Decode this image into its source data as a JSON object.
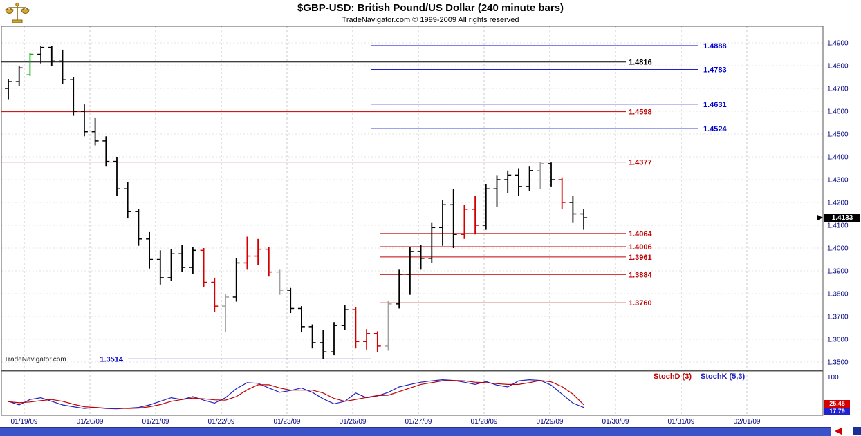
{
  "header": {
    "title": "$GBP-USD:  British Pound/US Dollar  (240 minute bars)",
    "subtitle": "TradeNavigator.com © 1999-2009 All rights reserved"
  },
  "watermark": "TradeNavigator.com",
  "last_price": "1.4133",
  "stoch_panel": {
    "d_label": "StochD (3)",
    "k_label": "StochK (5,3)",
    "scale_top": "100",
    "d_value": "25.45",
    "k_value": "17.79"
  },
  "colors": {
    "axis_text": "#000080",
    "level_red": "#c00000",
    "level_blue": "#0000cc",
    "level_black": "#000000",
    "bar_black": "#000000",
    "bar_red": "#d40000",
    "bar_gray": "#a0a0a0",
    "bar_green": "#00b400",
    "stoch_d": "#c00000",
    "stoch_k": "#2020c0",
    "scrollbar_blue": "#3c52c8",
    "last_price_bg": "#000000"
  },
  "chart_data": [
    {
      "type": "ohlc-bar",
      "title": "$GBP-USD: British Pound/US Dollar (240 minute bars)",
      "ylim": [
        1.35,
        1.49
      ],
      "y_ticks": [
        "1.4900",
        "1.4800",
        "1.4700",
        "1.4600",
        "1.4500",
        "1.4400",
        "1.4300",
        "1.4200",
        "1.4100",
        "1.4000",
        "1.3900",
        "1.3800",
        "1.3700",
        "1.3600",
        "1.3500"
      ],
      "x_ticks": [
        "01/19/09",
        "01/20/09",
        "01/21/09",
        "01/22/09",
        "01/23/09",
        "01/26/09",
        "01/27/09",
        "01/28/09",
        "01/29/09",
        "01/30/09",
        "01/31/09",
        "02/01/09"
      ],
      "bars_per_day": 6,
      "last_price": 1.4133,
      "bars": [
        [
          1.47,
          1.474,
          1.465,
          1.473,
          "black"
        ],
        [
          1.473,
          1.48,
          1.471,
          1.479,
          "black"
        ],
        [
          1.476,
          1.4855,
          1.4755,
          1.485,
          "green"
        ],
        [
          1.485,
          1.4888,
          1.481,
          1.488,
          "black"
        ],
        [
          1.488,
          1.4885,
          1.48,
          1.482,
          "black"
        ],
        [
          1.482,
          1.487,
          1.472,
          1.474,
          "black"
        ],
        [
          1.474,
          1.475,
          1.458,
          1.46,
          "black"
        ],
        [
          1.46,
          1.463,
          1.449,
          1.451,
          "black"
        ],
        [
          1.451,
          1.457,
          1.445,
          1.447,
          "black"
        ],
        [
          1.447,
          1.449,
          1.436,
          1.438,
          "black"
        ],
        [
          1.438,
          1.44,
          1.423,
          1.426,
          "black"
        ],
        [
          1.426,
          1.429,
          1.413,
          1.416,
          "black"
        ],
        [
          1.416,
          1.417,
          1.401,
          1.404,
          "black"
        ],
        [
          1.404,
          1.407,
          1.391,
          1.395,
          "black"
        ],
        [
          1.395,
          1.399,
          1.384,
          1.387,
          "black"
        ],
        [
          1.387,
          1.3995,
          1.3855,
          1.3975,
          "black"
        ],
        [
          1.3975,
          1.4015,
          1.3895,
          1.3915,
          "black"
        ],
        [
          1.3915,
          1.4005,
          1.3885,
          1.399,
          "black"
        ],
        [
          1.399,
          1.4,
          1.383,
          1.385,
          "red"
        ],
        [
          1.385,
          1.387,
          1.372,
          1.3745,
          "red"
        ],
        [
          1.3745,
          1.38,
          1.363,
          1.3785,
          "gray"
        ],
        [
          1.3785,
          1.3955,
          1.3765,
          1.3935,
          "black"
        ],
        [
          1.3935,
          1.405,
          1.3905,
          1.3965,
          "red"
        ],
        [
          1.3965,
          1.404,
          1.3925,
          1.3995,
          "red"
        ],
        [
          1.3995,
          1.4005,
          1.3875,
          1.3895,
          "red"
        ],
        [
          1.3895,
          1.3905,
          1.3795,
          1.3815,
          "gray"
        ],
        [
          1.3815,
          1.3825,
          1.3715,
          1.3735,
          "black"
        ],
        [
          1.3735,
          1.3745,
          1.363,
          1.3655,
          "black"
        ],
        [
          1.3655,
          1.3665,
          1.356,
          1.3585,
          "black"
        ],
        [
          1.3585,
          1.364,
          1.3514,
          1.3545,
          "black"
        ],
        [
          1.3545,
          1.3675,
          1.353,
          1.366,
          "black"
        ],
        [
          1.366,
          1.375,
          1.364,
          1.373,
          "black"
        ],
        [
          1.373,
          1.374,
          1.356,
          1.359,
          "red"
        ],
        [
          1.359,
          1.3645,
          1.3555,
          1.3625,
          "red"
        ],
        [
          1.3625,
          1.3635,
          1.3545,
          1.357,
          "red"
        ],
        [
          1.357,
          1.377,
          1.355,
          1.3755,
          "gray"
        ],
        [
          1.3755,
          1.3905,
          1.3735,
          1.3885,
          "black"
        ],
        [
          1.3885,
          1.4005,
          1.3795,
          1.3985,
          "black"
        ],
        [
          1.3985,
          1.4015,
          1.3905,
          1.3955,
          "black"
        ],
        [
          1.3955,
          1.411,
          1.3935,
          1.409,
          "black"
        ],
        [
          1.409,
          1.421,
          1.401,
          1.419,
          "black"
        ],
        [
          1.419,
          1.426,
          1.4,
          1.406,
          "black"
        ],
        [
          1.406,
          1.419,
          1.404,
          1.417,
          "red"
        ],
        [
          1.417,
          1.423,
          1.406,
          1.41,
          "red"
        ],
        [
          1.41,
          1.428,
          1.408,
          1.426,
          "black"
        ],
        [
          1.426,
          1.432,
          1.418,
          1.43,
          "black"
        ],
        [
          1.43,
          1.434,
          1.424,
          1.432,
          "black"
        ],
        [
          1.432,
          1.435,
          1.423,
          1.427,
          "black"
        ],
        [
          1.427,
          1.436,
          1.425,
          1.434,
          "black"
        ],
        [
          1.434,
          1.4377,
          1.426,
          1.437,
          "gray"
        ],
        [
          1.437,
          1.4375,
          1.427,
          1.43,
          "black"
        ],
        [
          1.43,
          1.431,
          1.417,
          1.42,
          "red"
        ],
        [
          1.42,
          1.423,
          1.411,
          1.415,
          "black"
        ],
        [
          1.415,
          1.417,
          1.408,
          1.4133,
          "black"
        ]
      ],
      "levels": [
        {
          "label": "1.4888",
          "price": 1.4888,
          "color": "#0000cc",
          "span": "right"
        },
        {
          "label": "1.4816",
          "price": 1.4816,
          "color": "#000000",
          "span": "full"
        },
        {
          "label": "1.4783",
          "price": 1.4783,
          "color": "#0000cc",
          "span": "right"
        },
        {
          "label": "1.4631",
          "price": 1.4631,
          "color": "#0000cc",
          "span": "right"
        },
        {
          "label": "1.4598",
          "price": 1.4598,
          "color": "#c00000",
          "span": "full"
        },
        {
          "label": "1.4524",
          "price": 1.4524,
          "color": "#0000cc",
          "span": "right"
        },
        {
          "label": "1.4377",
          "price": 1.4377,
          "color": "#c00000",
          "span": "full"
        },
        {
          "label": "1.4064",
          "price": 1.4064,
          "color": "#c00000",
          "span": "mid"
        },
        {
          "label": "1.4006",
          "price": 1.4006,
          "color": "#c00000",
          "span": "mid"
        },
        {
          "label": "1.3961",
          "price": 1.3961,
          "color": "#c00000",
          "span": "mid"
        },
        {
          "label": "1.3884",
          "price": 1.3884,
          "color": "#c00000",
          "span": "mid"
        },
        {
          "label": "1.3760",
          "price": 1.376,
          "color": "#c00000",
          "span": "mid"
        },
        {
          "label": "1.3514",
          "price": 1.3514,
          "color": "#0000cc",
          "span": "low"
        }
      ]
    },
    {
      "type": "line",
      "name": "Stochastic",
      "ylim": [
        0,
        100
      ],
      "y_ticks": [
        "100"
      ],
      "legend_position": "top-right",
      "series": [
        {
          "name": "StochD (3)",
          "color": "#c00000",
          "values": [
            34,
            31,
            33,
            37,
            40,
            35,
            27,
            20,
            18,
            16,
            16,
            15,
            16,
            20,
            26,
            35,
            40,
            44,
            42,
            39,
            38,
            48,
            67,
            81,
            81,
            72,
            66,
            66,
            66,
            58,
            43,
            35,
            40,
            46,
            51,
            52,
            62,
            72,
            82,
            87,
            92,
            93,
            92,
            88,
            87,
            84,
            82,
            82,
            87,
            93,
            89,
            76,
            55,
            25.45
          ]
        },
        {
          "name": "StochK (5,3)",
          "color": "#2020c0",
          "values": [
            35,
            25,
            40,
            45,
            35,
            25,
            20,
            15,
            18,
            15,
            14,
            16,
            18,
            25,
            35,
            45,
            40,
            48,
            38,
            30,
            45,
            70,
            87,
            85,
            72,
            60,
            65,
            72,
            60,
            42,
            28,
            35,
            58,
            45,
            50,
            60,
            75,
            82,
            88,
            92,
            95,
            93,
            88,
            82,
            90,
            80,
            75,
            92,
            95,
            93,
            80,
            55,
            30,
            17.79
          ]
        }
      ],
      "last_values": {
        "stoch_d": 25.45,
        "stoch_k": 17.79
      }
    }
  ]
}
